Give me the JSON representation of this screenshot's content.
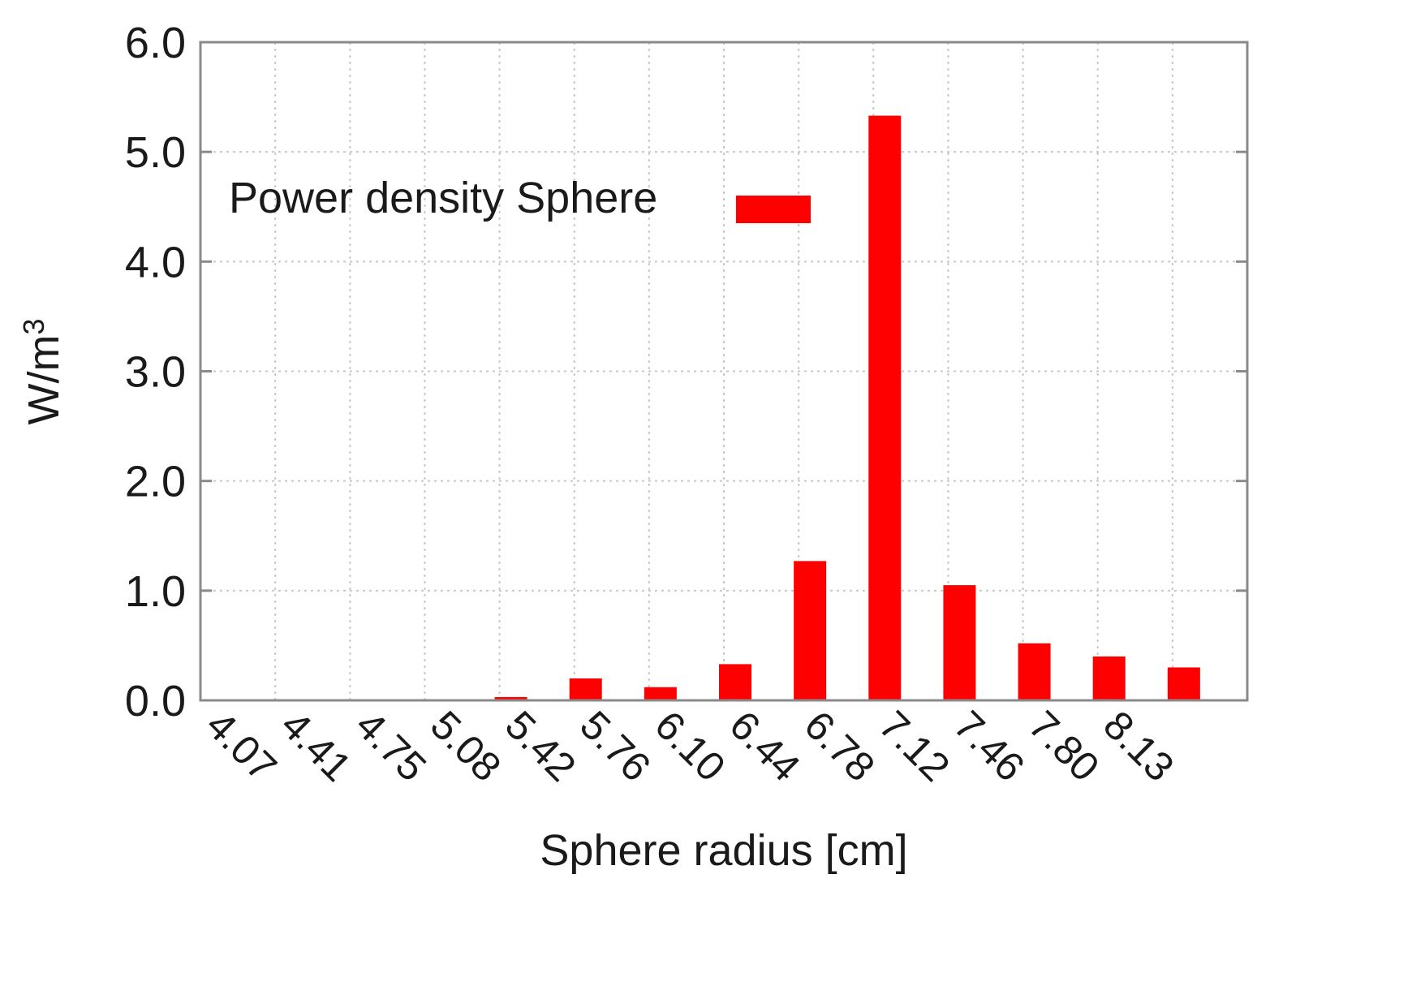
{
  "chart_data": {
    "type": "bar",
    "categories": [
      "4.07",
      "4.41",
      "4.75",
      "5.08",
      "5.42",
      "5.76",
      "6.10",
      "6.44",
      "6.78",
      "7.12",
      "7.46",
      "7.80",
      "8.13"
    ],
    "series": [
      {
        "name": "Power density Sphere",
        "color": "#ff0000",
        "values": [
          0.0,
          0.005,
          0.01,
          0.03,
          0.2,
          0.12,
          0.33,
          1.27,
          5.33,
          1.05,
          0.52,
          0.4,
          0.3
        ]
      }
    ],
    "xlabel": "Sphere radius [cm]",
    "ylabel": "W/m",
    "ylabel_superscript": "3",
    "ylim": [
      0,
      6
    ],
    "yticks": [
      "0.0",
      "1.0",
      "2.0",
      "3.0",
      "4.0",
      "5.0",
      "6.0"
    ],
    "grid": true,
    "legend_position": "top-left"
  }
}
